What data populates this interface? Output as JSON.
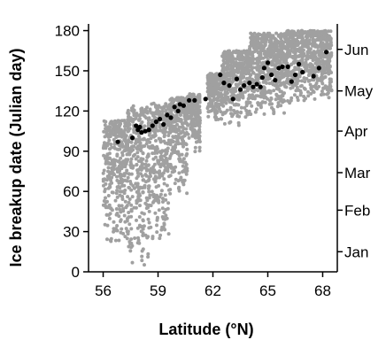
{
  "chart_data": {
    "type": "scatter",
    "title": "",
    "xlabel": "Latitude (°N)",
    "ylabel": "Ice breakup date (Julian day)",
    "xlim": [
      55.2,
      68.8
    ],
    "ylim": [
      0,
      185
    ],
    "x_ticks": [
      56,
      59,
      62,
      65,
      68
    ],
    "y_ticks": [
      0,
      30,
      60,
      90,
      120,
      150,
      180
    ],
    "right_axis": {
      "labels": [
        "Jan",
        "Feb",
        "Mar",
        "Apr",
        "May",
        "Jun"
      ],
      "tick_days": [
        15,
        46,
        74,
        105,
        135,
        166
      ]
    },
    "grid": false,
    "legend": "none",
    "colors": {
      "gray_series": "#a0a0a0",
      "black_series": "#000000"
    },
    "series": [
      {
        "color": "gray",
        "description_ranges": [
          {
            "x_from": 56.0,
            "x_to": 57.3,
            "y_min": 18,
            "y_max": 113
          },
          {
            "x_from": 57.3,
            "x_to": 58.6,
            "y_min": 3,
            "y_max": 124
          },
          {
            "x_from": 58.6,
            "x_to": 59.6,
            "y_min": 22,
            "y_max": 126
          },
          {
            "x_from": 59.6,
            "x_to": 60.6,
            "y_min": 55,
            "y_max": 130
          },
          {
            "x_from": 60.6,
            "x_to": 61.3,
            "y_min": 88,
            "y_max": 133
          },
          {
            "x_from": 61.7,
            "x_to": 62.5,
            "y_min": 112,
            "y_max": 148
          },
          {
            "x_from": 62.5,
            "x_to": 64.0,
            "y_min": 108,
            "y_max": 165
          },
          {
            "x_from": 64.0,
            "x_to": 66.0,
            "y_min": 115,
            "y_max": 178
          },
          {
            "x_from": 66.0,
            "x_to": 68.5,
            "y_min": 125,
            "y_max": 180
          }
        ]
      },
      {
        "color": "black",
        "points": [
          [
            56.8,
            97
          ],
          [
            57.6,
            100
          ],
          [
            57.8,
            109
          ],
          [
            57.9,
            106
          ],
          [
            58.0,
            108
          ],
          [
            58.1,
            104
          ],
          [
            58.3,
            105
          ],
          [
            58.5,
            106
          ],
          [
            58.7,
            109
          ],
          [
            58.9,
            112
          ],
          [
            59.1,
            114
          ],
          [
            59.3,
            110
          ],
          [
            59.5,
            117
          ],
          [
            59.7,
            115
          ],
          [
            59.9,
            123
          ],
          [
            60.1,
            120
          ],
          [
            60.2,
            125
          ],
          [
            60.4,
            124
          ],
          [
            60.7,
            128
          ],
          [
            61.0,
            128
          ],
          [
            61.6,
            129
          ],
          [
            62.4,
            147
          ],
          [
            62.6,
            141
          ],
          [
            62.9,
            139
          ],
          [
            63.1,
            129
          ],
          [
            63.3,
            144
          ],
          [
            63.5,
            136
          ],
          [
            63.7,
            139
          ],
          [
            64.0,
            141
          ],
          [
            64.2,
            138
          ],
          [
            64.4,
            140
          ],
          [
            64.6,
            138
          ],
          [
            64.7,
            145
          ],
          [
            64.8,
            152
          ],
          [
            65.0,
            156
          ],
          [
            65.2,
            147
          ],
          [
            65.4,
            143
          ],
          [
            65.6,
            152
          ],
          [
            65.8,
            153
          ],
          [
            66.1,
            153
          ],
          [
            66.3,
            142
          ],
          [
            66.5,
            147
          ],
          [
            66.7,
            155
          ],
          [
            66.9,
            149
          ],
          [
            67.5,
            146
          ],
          [
            67.8,
            152
          ],
          [
            68.2,
            164
          ]
        ]
      }
    ]
  }
}
